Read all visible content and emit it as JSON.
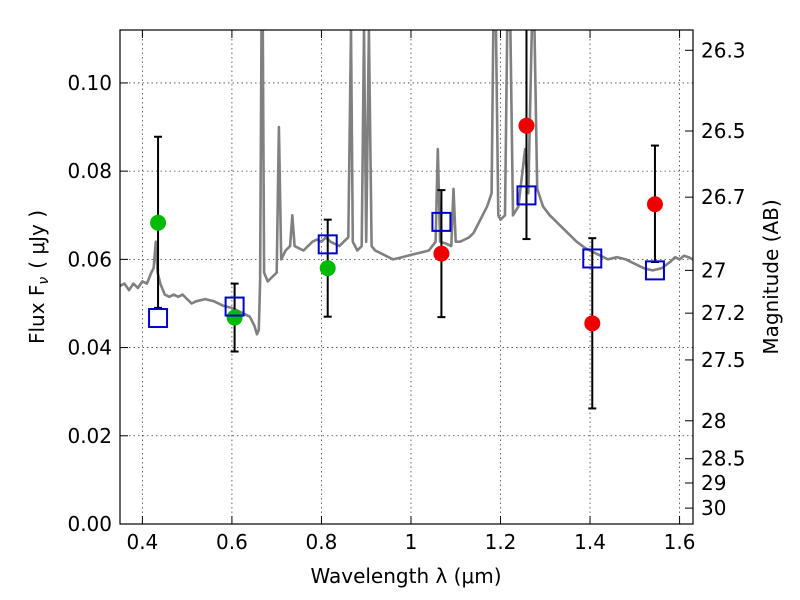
{
  "chart_data": {
    "type": "scatter",
    "xlabel": "Wavelength  λ (μm)",
    "ylabel": "Flux  F",
    "ylabel_sub": "ν",
    "ylabel_unit": "( μJy )",
    "ylabel_right": "Magnitude (AB)",
    "xlim": [
      0.35,
      1.63
    ],
    "ylim": [
      0.0,
      0.112
    ],
    "grid": true,
    "x_ticks": [
      0.4,
      0.6,
      0.8,
      1.0,
      1.2,
      1.4,
      1.6
    ],
    "x_tick_labels": [
      "0.4",
      "0.6",
      "0.8",
      "1",
      "1.2",
      "1.4",
      "1.6"
    ],
    "y_ticks": [
      0.0,
      0.02,
      0.04,
      0.06,
      0.08,
      0.1
    ],
    "y_tick_labels": [
      "0.00",
      "0.02",
      "0.04",
      "0.06",
      "0.08",
      "0.10"
    ],
    "right_ticks": [
      {
        "flux": 0.1074,
        "label": "26.3"
      },
      {
        "flux": 0.0891,
        "label": "26.5"
      },
      {
        "flux": 0.0741,
        "label": "26.7"
      },
      {
        "flux": 0.0575,
        "label": "27"
      },
      {
        "flux": 0.0478,
        "label": "27.2"
      },
      {
        "flux": 0.0372,
        "label": "27.5"
      },
      {
        "flux": 0.0234,
        "label": "28"
      },
      {
        "flux": 0.0148,
        "label": "28.5"
      },
      {
        "flux": 0.0093,
        "label": "29"
      },
      {
        "flux": 0.0036,
        "label": "30"
      }
    ],
    "colors": {
      "spectrum": "#808080",
      "model": "#0000cc",
      "green": "#00bb00",
      "red": "#ee0000",
      "errorbar": "#000000"
    },
    "series": [
      {
        "color": "green",
        "points": [
          {
            "x": 0.435,
            "y": 0.0683,
            "yerr_low": 0.049,
            "yerr_high": 0.0878
          },
          {
            "x": 0.606,
            "y": 0.0468,
            "yerr_low": 0.0391,
            "yerr_high": 0.0545
          },
          {
            "x": 0.814,
            "y": 0.058,
            "yerr_low": 0.047,
            "yerr_high": 0.069
          }
        ]
      },
      {
        "color": "red",
        "points": [
          {
            "x": 1.068,
            "y": 0.0613,
            "yerr_low": 0.0469,
            "yerr_high": 0.0757
          },
          {
            "x": 1.258,
            "y": 0.0903,
            "yerr_low": 0.0646,
            "yerr_high": 0.113
          },
          {
            "x": 1.405,
            "y": 0.0455,
            "yerr_low": 0.0262,
            "yerr_high": 0.0648
          },
          {
            "x": 1.545,
            "y": 0.0725,
            "yerr_low": 0.0594,
            "yerr_high": 0.0858
          }
        ]
      }
    ],
    "model_points": [
      {
        "x": 0.435,
        "y": 0.0467
      },
      {
        "x": 0.606,
        "y": 0.0493
      },
      {
        "x": 0.814,
        "y": 0.0634
      },
      {
        "x": 1.068,
        "y": 0.0685
      },
      {
        "x": 1.258,
        "y": 0.0745
      },
      {
        "x": 1.405,
        "y": 0.0602
      },
      {
        "x": 1.545,
        "y": 0.0575
      }
    ],
    "spectrum": [
      [
        0.35,
        0.054
      ],
      [
        0.36,
        0.0545
      ],
      [
        0.37,
        0.053
      ],
      [
        0.38,
        0.0545
      ],
      [
        0.39,
        0.0535
      ],
      [
        0.4,
        0.055
      ],
      [
        0.41,
        0.0545
      ],
      [
        0.42,
        0.057
      ],
      [
        0.425,
        0.058
      ],
      [
        0.43,
        0.064
      ],
      [
        0.434,
        0.057
      ],
      [
        0.44,
        0.0545
      ],
      [
        0.45,
        0.052
      ],
      [
        0.46,
        0.0515
      ],
      [
        0.47,
        0.052
      ],
      [
        0.48,
        0.0515
      ],
      [
        0.49,
        0.052
      ],
      [
        0.5,
        0.051
      ],
      [
        0.51,
        0.05
      ],
      [
        0.52,
        0.0505
      ],
      [
        0.54,
        0.051
      ],
      [
        0.56,
        0.0505
      ],
      [
        0.58,
        0.0495
      ],
      [
        0.6,
        0.049
      ],
      [
        0.62,
        0.048
      ],
      [
        0.64,
        0.047
      ],
      [
        0.65,
        0.045
      ],
      [
        0.656,
        0.043
      ],
      [
        0.66,
        0.044
      ],
      [
        0.663,
        0.055
      ],
      [
        0.666,
        0.112
      ],
      [
        0.669,
        0.112
      ],
      [
        0.672,
        0.057
      ],
      [
        0.68,
        0.055
      ],
      [
        0.69,
        0.056
      ],
      [
        0.7,
        0.057
      ],
      [
        0.705,
        0.09
      ],
      [
        0.71,
        0.06
      ],
      [
        0.72,
        0.062
      ],
      [
        0.73,
        0.063
      ],
      [
        0.735,
        0.07
      ],
      [
        0.74,
        0.063
      ],
      [
        0.75,
        0.0625
      ],
      [
        0.76,
        0.062
      ],
      [
        0.77,
        0.063
      ],
      [
        0.78,
        0.064
      ],
      [
        0.79,
        0.0645
      ],
      [
        0.8,
        0.064
      ],
      [
        0.81,
        0.065
      ],
      [
        0.82,
        0.064
      ],
      [
        0.83,
        0.0635
      ],
      [
        0.84,
        0.063
      ],
      [
        0.85,
        0.064
      ],
      [
        0.86,
        0.065
      ],
      [
        0.866,
        0.112
      ],
      [
        0.87,
        0.064
      ],
      [
        0.88,
        0.062
      ],
      [
        0.89,
        0.063
      ],
      [
        0.895,
        0.112
      ],
      [
        0.9,
        0.064
      ],
      [
        0.906,
        0.112
      ],
      [
        0.912,
        0.063
      ],
      [
        0.92,
        0.062
      ],
      [
        0.94,
        0.061
      ],
      [
        0.96,
        0.06
      ],
      [
        0.98,
        0.0605
      ],
      [
        1.0,
        0.061
      ],
      [
        1.02,
        0.0615
      ],
      [
        1.04,
        0.062
      ],
      [
        1.055,
        0.064
      ],
      [
        1.06,
        0.085
      ],
      [
        1.065,
        0.064
      ],
      [
        1.08,
        0.0635
      ],
      [
        1.09,
        0.063
      ],
      [
        1.095,
        0.076
      ],
      [
        1.1,
        0.064
      ],
      [
        1.11,
        0.064
      ],
      [
        1.12,
        0.0645
      ],
      [
        1.13,
        0.065
      ],
      [
        1.14,
        0.066
      ],
      [
        1.15,
        0.068
      ],
      [
        1.16,
        0.07
      ],
      [
        1.17,
        0.072
      ],
      [
        1.18,
        0.075
      ],
      [
        1.184,
        0.112
      ],
      [
        1.19,
        0.112
      ],
      [
        1.195,
        0.07
      ],
      [
        1.2,
        0.069
      ],
      [
        1.21,
        0.07
      ],
      [
        1.215,
        0.112
      ],
      [
        1.222,
        0.112
      ],
      [
        1.228,
        0.07
      ],
      [
        1.24,
        0.072
      ],
      [
        1.255,
        0.085
      ],
      [
        1.262,
        0.075
      ],
      [
        1.27,
        0.112
      ],
      [
        1.276,
        0.112
      ],
      [
        1.282,
        0.076
      ],
      [
        1.295,
        0.072
      ],
      [
        1.31,
        0.07
      ],
      [
        1.33,
        0.068
      ],
      [
        1.35,
        0.066
      ],
      [
        1.37,
        0.064
      ],
      [
        1.39,
        0.0625
      ],
      [
        1.4,
        0.062
      ],
      [
        1.42,
        0.061
      ],
      [
        1.44,
        0.06
      ],
      [
        1.46,
        0.0605
      ],
      [
        1.48,
        0.06
      ],
      [
        1.5,
        0.059
      ],
      [
        1.52,
        0.058
      ],
      [
        1.54,
        0.0575
      ],
      [
        1.56,
        0.058
      ],
      [
        1.58,
        0.0595
      ],
      [
        1.59,
        0.0605
      ],
      [
        1.6,
        0.06
      ],
      [
        1.61,
        0.0608
      ],
      [
        1.62,
        0.0605
      ],
      [
        1.63,
        0.06
      ]
    ]
  }
}
